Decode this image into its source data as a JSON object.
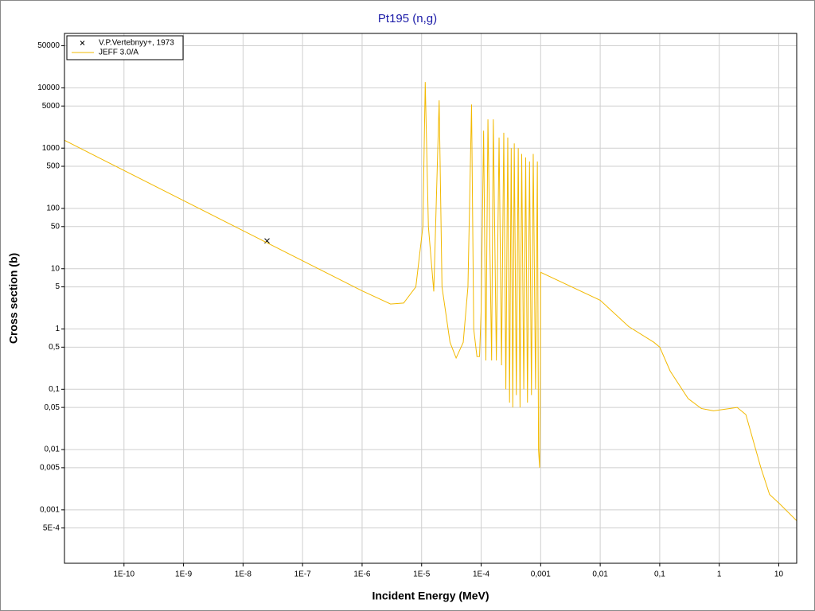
{
  "chart_data": {
    "type": "line",
    "title": "Pt195 (n,g)",
    "x_label": "Incident Energy (MeV)",
    "y_label": "Cross section (b)",
    "xscale": "log",
    "yscale": "log",
    "xlim": [
      1e-11,
      20
    ],
    "ylim": [
      0.00013,
      80000
    ],
    "xticks": [
      {
        "value": 1e-10,
        "label": "1E-10"
      },
      {
        "value": 1e-09,
        "label": "1E-9"
      },
      {
        "value": 1e-08,
        "label": "1E-8"
      },
      {
        "value": 1e-07,
        "label": "1E-7"
      },
      {
        "value": 1e-06,
        "label": "1E-6"
      },
      {
        "value": 1e-05,
        "label": "1E-5"
      },
      {
        "value": 0.0001,
        "label": "1E-4"
      },
      {
        "value": 0.001,
        "label": "0,001"
      },
      {
        "value": 0.01,
        "label": "0,01"
      },
      {
        "value": 0.1,
        "label": "0,1"
      },
      1,
      10
    ],
    "yticks": [
      50000,
      10000,
      5000,
      1000,
      500,
      100,
      50,
      10,
      5,
      1,
      {
        "value": 0.5,
        "label": "0,5"
      },
      {
        "value": 0.1,
        "label": "0,1"
      },
      {
        "value": 0.05,
        "label": "0,05"
      },
      {
        "value": 0.01,
        "label": "0,01"
      },
      {
        "value": 0.005,
        "label": "0,005"
      },
      {
        "value": 0.001,
        "label": "0,001"
      },
      {
        "value": 0.0005,
        "label": "5E-4"
      }
    ],
    "grid": true,
    "legend": "upper left",
    "series": [
      {
        "name": "V.P.Vertebnyy+, 1973",
        "type": "scatter",
        "marker": "x",
        "color": "#000000",
        "x": [
          2.53e-08
        ],
        "values": [
          29
        ]
      },
      {
        "name": "JEFF 3.0/A",
        "type": "line",
        "color": "#f2b900",
        "x": [
          1e-11,
          1e-08,
          1e-06,
          3e-06,
          5e-06,
          8e-06,
          1.05e-05,
          1.15e-05,
          1.3e-05,
          1.6e-05,
          1.97e-05,
          2.2e-05,
          3e-05,
          3.8e-05,
          5e-05,
          6e-05,
          6.9e-05,
          7.5e-05,
          8.5e-05,
          9.4e-05,
          0.0001,
          0.00011,
          0.00012,
          0.00013,
          0.00015,
          0.00016,
          0.00018,
          0.0002,
          0.00022,
          0.00024,
          0.00026,
          0.00028,
          0.0003,
          0.00032,
          0.00034,
          0.00036,
          0.00039,
          0.00042,
          0.00045,
          0.00048,
          0.00052,
          0.00056,
          0.0006,
          0.00065,
          0.0007,
          0.00075,
          0.00082,
          0.00088,
          0.00092,
          0.00096,
          0.00099,
          0.001,
          0.01,
          0.03,
          0.08,
          0.1,
          0.15,
          0.3,
          0.5,
          0.8,
          1.5,
          2,
          2.8,
          5,
          7,
          10,
          20
        ],
        "values": [
          1350,
          42.7,
          4.3,
          2.6,
          2.7,
          5,
          50,
          12500,
          50,
          4.2,
          6200,
          5,
          0.6,
          0.33,
          0.6,
          5,
          5300,
          1,
          0.35,
          0.35,
          2,
          1950,
          0.3,
          3000,
          0.3,
          3000,
          0.3,
          1500,
          0.25,
          1800,
          0.1,
          1500,
          0.06,
          1000,
          0.05,
          1200,
          0.08,
          1000,
          0.05,
          800,
          0.1,
          700,
          0.06,
          600,
          0.08,
          800,
          0.1,
          600,
          0.01,
          0.005,
          0.3,
          8.7,
          3,
          1.1,
          0.6,
          0.5,
          0.2,
          0.07,
          0.048,
          0.044,
          0.048,
          0.05,
          0.038,
          0.005,
          0.0018,
          0.0013,
          0.00066
        ]
      }
    ]
  }
}
